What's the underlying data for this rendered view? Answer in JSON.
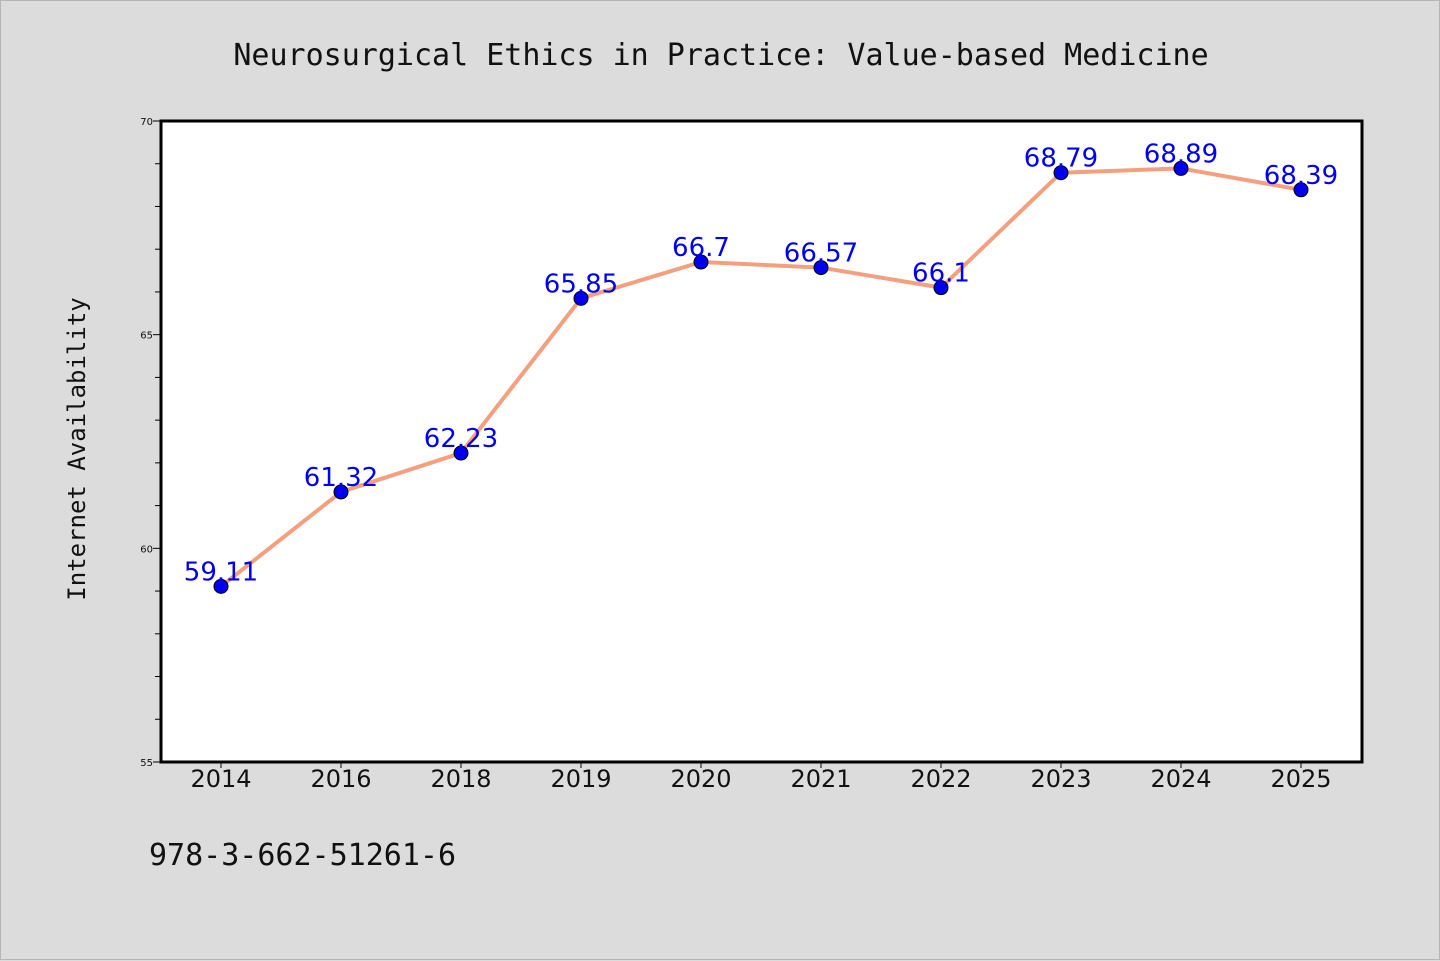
{
  "chart_data": {
    "type": "line",
    "title": "Neurosurgical Ethics in Practice: Value-based Medicine",
    "ylabel": "Internet Availability",
    "xlabel": "",
    "categories": [
      "2014",
      "2016",
      "2018",
      "2019",
      "2020",
      "2021",
      "2022",
      "2023",
      "2024",
      "2025"
    ],
    "values": [
      59.11,
      61.32,
      62.23,
      65.85,
      66.7,
      66.57,
      66.1,
      68.79,
      68.89,
      68.39
    ],
    "data_labels": [
      "59.11",
      "61.32",
      "62.23",
      "65.85",
      "66.7",
      "66.57",
      "66.1",
      "68.79",
      "68.89",
      "68.39"
    ],
    "ylim": [
      55,
      70
    ],
    "yticks": [
      "55",
      "60",
      "65",
      "70"
    ],
    "grid": false,
    "line_color": "#f4a07e",
    "marker_color": "#0000ee",
    "label_color": "#0000ee"
  },
  "footer": {
    "isbn": "978-3-662-51261-6"
  }
}
